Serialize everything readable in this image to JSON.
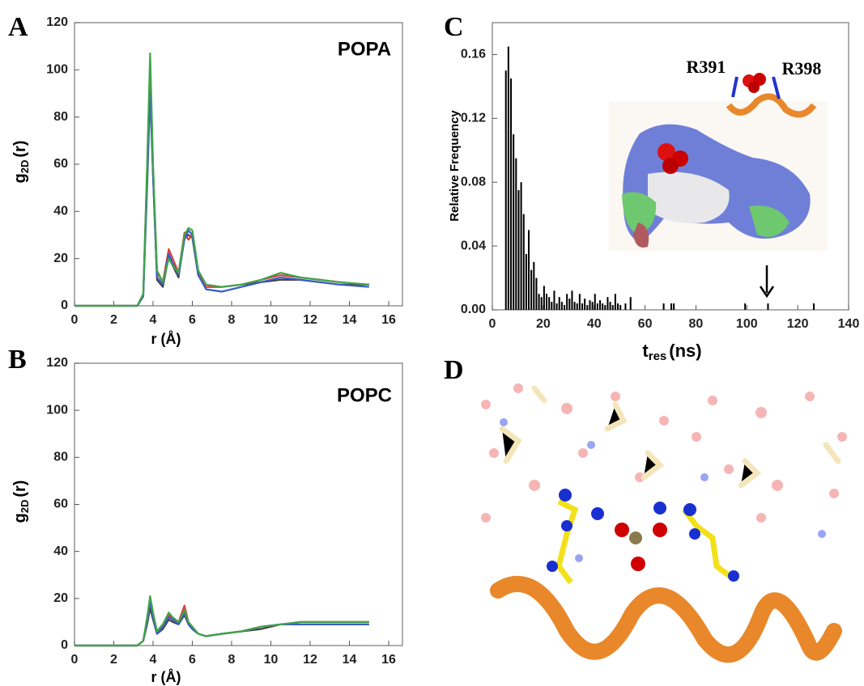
{
  "chart_data": [
    {
      "type": "line",
      "panel": "A",
      "title": "POPA",
      "xlabel": "r (Å)",
      "ylabel": {
        "main": "g",
        "sub": "2D",
        "rest": "(r)"
      },
      "x": [
        0,
        3.2,
        3.5,
        3.7,
        3.85,
        4.0,
        4.2,
        4.5,
        4.8,
        5.0,
        5.3,
        5.6,
        5.8,
        6.0,
        6.3,
        6.7,
        7.5,
        8.5,
        9.5,
        10.5,
        11.5,
        12.5,
        13.5,
        15
      ],
      "series": [
        {
          "color": "#444444",
          "values": [
            0,
            0,
            4,
            55,
            98,
            55,
            11,
            8,
            21,
            17,
            12,
            29,
            30,
            29,
            13,
            8,
            8,
            9,
            10,
            11,
            11,
            10,
            9,
            9
          ]
        },
        {
          "color": "#d9403a",
          "values": [
            0,
            0,
            5,
            58,
            103,
            58,
            14,
            10,
            24,
            20,
            14,
            31,
            28,
            30,
            14,
            8,
            8,
            9,
            11,
            13,
            12,
            11,
            10,
            9
          ]
        },
        {
          "color": "#3d5bc9",
          "values": [
            0,
            0,
            4,
            50,
            90,
            55,
            12,
            9,
            22,
            18,
            13,
            28,
            32,
            30,
            13,
            7,
            6,
            8,
            10,
            12,
            11,
            10,
            9,
            8
          ]
        },
        {
          "color": "#3fa54a",
          "values": [
            0,
            0,
            5,
            60,
            107,
            60,
            15,
            10,
            20,
            17,
            14,
            30,
            33,
            32,
            15,
            9,
            8,
            9,
            11,
            14,
            12,
            11,
            10,
            9
          ]
        }
      ],
      "xlim": [
        0,
        16.7
      ],
      "xticks": [
        0,
        2,
        4,
        6,
        8,
        10,
        12,
        14,
        16
      ],
      "ylim": [
        0,
        120
      ],
      "yticks": [
        0,
        20,
        40,
        60,
        80,
        100,
        120
      ]
    },
    {
      "type": "line",
      "panel": "B",
      "title": "POPC",
      "xlabel": "r (Å)",
      "ylabel": {
        "main": "g",
        "sub": "2D",
        "rest": "(r)"
      },
      "x": [
        0,
        3.2,
        3.5,
        3.7,
        3.85,
        4.0,
        4.2,
        4.5,
        4.8,
        5.0,
        5.3,
        5.6,
        5.8,
        6.0,
        6.3,
        6.7,
        7.5,
        8.5,
        9.5,
        10.5,
        11.5,
        12.5,
        13.5,
        15
      ],
      "series": [
        {
          "color": "#444444",
          "values": [
            0,
            0,
            2,
            9,
            16,
            11,
            5,
            7,
            11,
            10,
            9,
            13,
            9,
            7,
            5,
            4,
            5,
            6,
            7,
            9,
            9,
            9,
            9,
            9
          ]
        },
        {
          "color": "#d9403a",
          "values": [
            0,
            0,
            2,
            11,
            20,
            13,
            6,
            9,
            13,
            11,
            10,
            17,
            10,
            8,
            5,
            4,
            5,
            6,
            8,
            9,
            10,
            10,
            10,
            10
          ]
        },
        {
          "color": "#3d5bc9",
          "values": [
            0,
            0,
            2,
            10,
            19,
            12,
            5,
            8,
            12,
            11,
            9,
            14,
            9,
            7,
            5,
            4,
            5,
            6,
            8,
            9,
            9,
            9,
            9,
            9
          ]
        },
        {
          "color": "#3fa54a",
          "values": [
            0,
            0,
            2,
            12,
            21,
            14,
            6,
            9,
            14,
            12,
            10,
            15,
            10,
            8,
            5,
            4,
            5,
            6,
            8,
            9,
            10,
            10,
            10,
            10
          ]
        }
      ],
      "xlim": [
        0,
        16.7
      ],
      "xticks": [
        0,
        2,
        4,
        6,
        8,
        10,
        12,
        14,
        16
      ],
      "ylim": [
        0,
        120
      ],
      "yticks": [
        0,
        20,
        40,
        60,
        80,
        100,
        120
      ]
    },
    {
      "type": "histogram",
      "panel": "C",
      "xlabel": {
        "main": "t",
        "sub": "res",
        "rest": "(ns)"
      },
      "ylabel": "Relative Frequency",
      "annotations": [
        "R391",
        "R398"
      ],
      "color": "#000000",
      "bins": [
        5,
        6,
        7,
        8,
        9,
        10,
        11,
        12,
        13,
        14,
        15,
        16,
        17,
        18,
        19,
        20,
        21,
        22,
        23,
        24,
        25,
        26,
        27,
        28,
        29,
        30,
        31,
        32,
        33,
        34,
        35,
        36,
        37,
        38,
        39,
        40,
        41,
        42,
        43,
        44,
        45,
        46,
        47,
        48,
        49,
        50,
        51,
        52,
        53,
        54,
        55,
        56,
        57,
        58,
        59,
        60,
        61,
        62,
        63,
        64,
        65,
        66,
        67,
        68,
        69,
        70,
        71,
        72,
        73,
        74,
        75,
        76,
        77,
        78,
        79,
        80,
        81,
        82,
        83,
        84,
        85,
        86,
        87,
        88,
        89,
        90,
        91,
        92,
        93,
        94,
        95,
        96,
        97,
        98,
        99,
        100,
        101,
        102,
        103,
        104,
        105,
        106,
        107,
        108,
        109,
        110,
        111,
        112,
        113,
        114,
        115,
        116,
        117,
        118,
        119,
        120,
        121,
        122,
        123,
        124,
        125,
        126,
        127
      ],
      "values": [
        0.15,
        0.165,
        0.145,
        0.11,
        0.095,
        0.075,
        0.08,
        0.06,
        0.035,
        0.05,
        0.025,
        0.03,
        0.02,
        0.01,
        0.008,
        0.015,
        0.01,
        0.008,
        0.005,
        0.012,
        0.004,
        0.008,
        0.005,
        0.003,
        0.01,
        0.007,
        0.012,
        0.005,
        0.004,
        0.01,
        0.004,
        0.007,
        0.003,
        0.006,
        0.005,
        0.01,
        0.004,
        0.006,
        0.004,
        0.003,
        0.008,
        0.005,
        0.003,
        0.01,
        0.004,
        0.003,
        0,
        0.004,
        0,
        0.008,
        0,
        0,
        0,
        0,
        0,
        0,
        0,
        0,
        0,
        0,
        0,
        0,
        0.004,
        0,
        0,
        0.004,
        0.004,
        0,
        0,
        0,
        0,
        0,
        0,
        0,
        0,
        0,
        0,
        0,
        0,
        0,
        0,
        0,
        0,
        0,
        0,
        0,
        0,
        0,
        0,
        0,
        0,
        0,
        0,
        0,
        0.004,
        0,
        0,
        0,
        0,
        0,
        0,
        0,
        0,
        0.004,
        0,
        0,
        0,
        0,
        0,
        0,
        0,
        0,
        0,
        0,
        0,
        0,
        0,
        0,
        0,
        0,
        0,
        0.004
      ],
      "xlim": [
        0,
        140
      ],
      "xticks": [
        0,
        20,
        40,
        60,
        80,
        100,
        120,
        140
      ],
      "ylim": [
        0,
        0.18
      ],
      "yticks": [
        {
          "value": 0,
          "label": "0.00"
        },
        {
          "value": 0.04,
          "label": "0.04"
        },
        {
          "value": 0.08,
          "label": "0.08"
        },
        {
          "value": 0.12,
          "label": "0.12"
        },
        {
          "value": 0.16,
          "label": "0.16"
        }
      ]
    }
  ],
  "panel_d": {
    "label": "D"
  }
}
